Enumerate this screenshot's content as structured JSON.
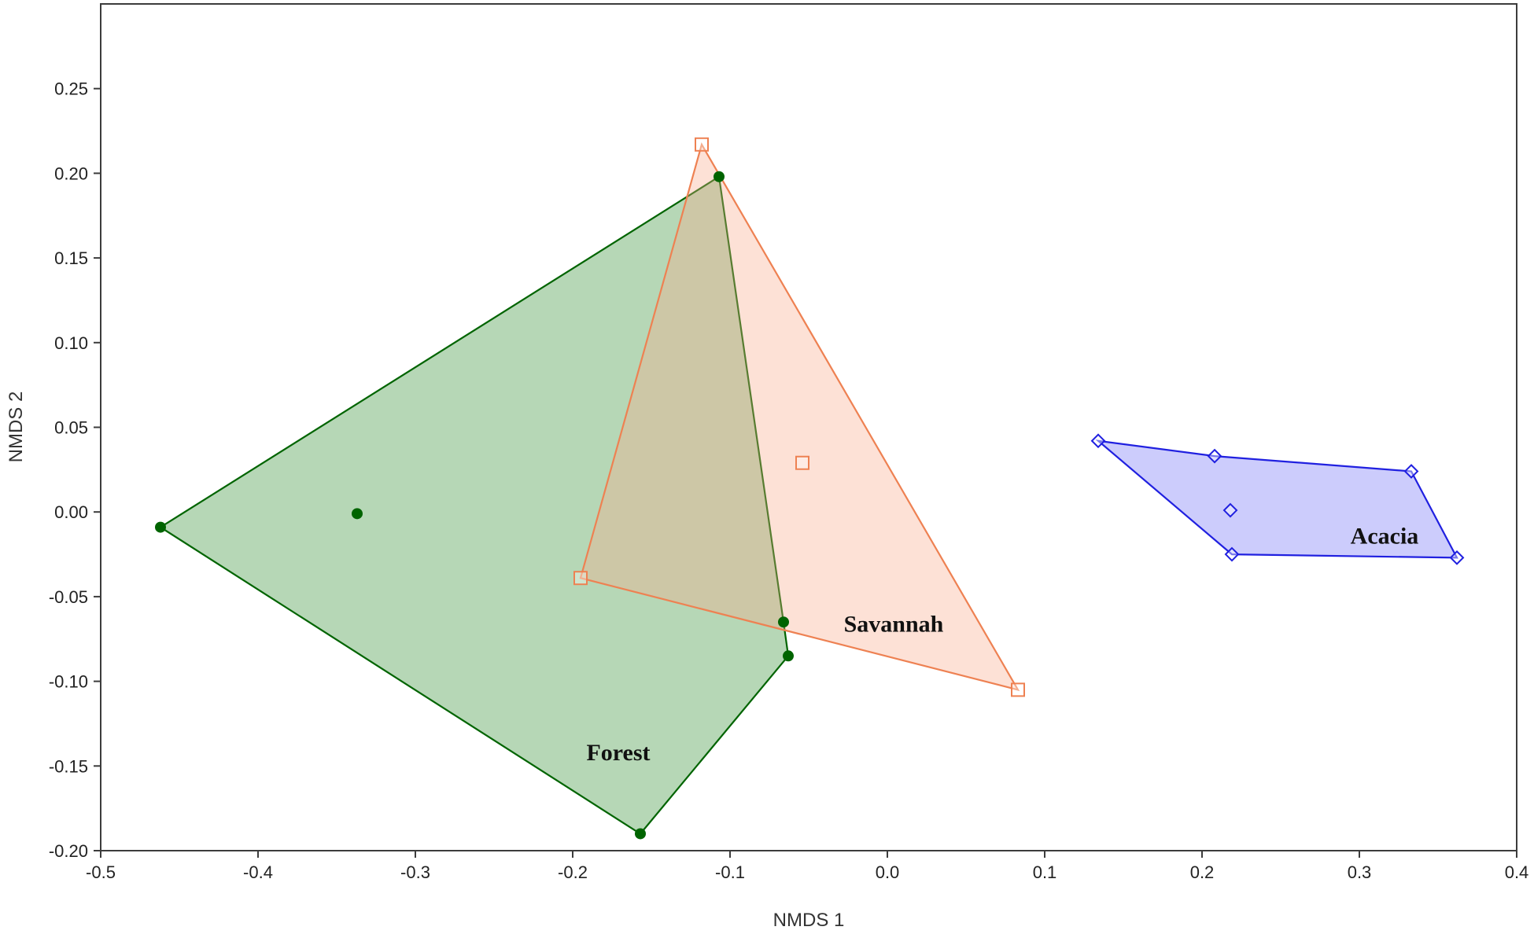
{
  "chart_data": {
    "type": "scatter",
    "title": "",
    "xlabel": "NMDS 1",
    "ylabel": "NMDS 2",
    "xlim": [
      -0.5,
      0.4
    ],
    "ylim": [
      -0.2,
      0.3
    ],
    "x_ticks": [
      -0.5,
      -0.4,
      -0.3,
      -0.2,
      -0.1,
      0.0,
      0.1,
      0.2,
      0.3,
      0.4
    ],
    "x_tick_labels": [
      "-0.5",
      "-0.4",
      "-0.3",
      "-0.2",
      "-0.1",
      "0.0",
      "0.1",
      "0.2",
      "0.3",
      "0.4"
    ],
    "y_ticks": [
      -0.2,
      -0.15,
      -0.1,
      -0.05,
      0.0,
      0.05,
      0.1,
      0.15,
      0.2,
      0.25
    ],
    "y_tick_labels": [
      "-0.20",
      "-0.15",
      "-0.10",
      "-0.05",
      "0.00",
      "0.05",
      "0.10",
      "0.15",
      "0.20",
      "0.25"
    ],
    "grid": false,
    "legend": "none",
    "series": [
      {
        "name": "Forest",
        "marker": "circle-filled",
        "color": "#006400",
        "fill": "#2e8b2e",
        "points": [
          {
            "x": -0.462,
            "y": -0.009
          },
          {
            "x": -0.337,
            "y": -0.001
          },
          {
            "x": -0.107,
            "y": 0.198
          },
          {
            "x": -0.066,
            "y": -0.065
          },
          {
            "x": -0.063,
            "y": -0.085
          },
          {
            "x": -0.157,
            "y": -0.19
          }
        ],
        "hull": [
          {
            "x": -0.462,
            "y": -0.009
          },
          {
            "x": -0.107,
            "y": 0.198
          },
          {
            "x": -0.066,
            "y": -0.065
          },
          {
            "x": -0.063,
            "y": -0.085
          },
          {
            "x": -0.157,
            "y": -0.19
          }
        ],
        "label_position": {
          "x": -0.171,
          "y": -0.142
        }
      },
      {
        "name": "Savannah",
        "marker": "square-open",
        "color": "#ee8152",
        "fill": "#f8a88a",
        "points": [
          {
            "x": -0.118,
            "y": 0.217
          },
          {
            "x": -0.054,
            "y": 0.029
          },
          {
            "x": -0.195,
            "y": -0.039
          },
          {
            "x": 0.083,
            "y": -0.105
          }
        ],
        "hull": [
          {
            "x": -0.118,
            "y": 0.217
          },
          {
            "x": 0.083,
            "y": -0.105
          },
          {
            "x": -0.195,
            "y": -0.039
          }
        ],
        "label_position": {
          "x": 0.004,
          "y": -0.066
        }
      },
      {
        "name": "Acacia",
        "marker": "diamond-open",
        "color": "#2020e0",
        "fill": "#6d6df7",
        "points": [
          {
            "x": 0.134,
            "y": 0.042
          },
          {
            "x": 0.208,
            "y": 0.033
          },
          {
            "x": 0.333,
            "y": 0.024
          },
          {
            "x": 0.218,
            "y": 0.001
          },
          {
            "x": 0.219,
            "y": -0.025
          },
          {
            "x": 0.362,
            "y": -0.027
          }
        ],
        "hull": [
          {
            "x": 0.134,
            "y": 0.042
          },
          {
            "x": 0.208,
            "y": 0.033
          },
          {
            "x": 0.333,
            "y": 0.024
          },
          {
            "x": 0.362,
            "y": -0.027
          },
          {
            "x": 0.219,
            "y": -0.025
          }
        ],
        "label_position": {
          "x": 0.316,
          "y": -0.014
        }
      }
    ]
  }
}
